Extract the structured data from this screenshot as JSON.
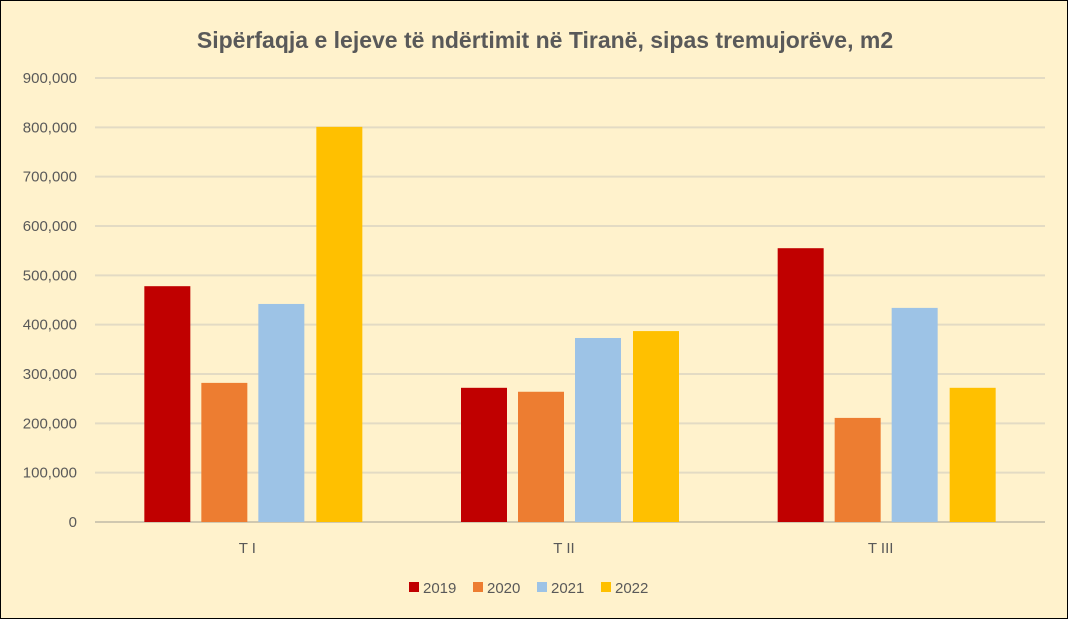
{
  "chart_data": {
    "type": "bar",
    "title": "Sipërfaqja e lejeve të ndërtimit në Tiranë, sipas tremujorëve, m2",
    "xlabel": "",
    "ylabel": "",
    "categories": [
      "T I",
      "T II",
      "T III"
    ],
    "series": [
      {
        "name": "2019",
        "color": "#C00000",
        "values": [
          478000,
          272000,
          555000
        ]
      },
      {
        "name": "2020",
        "color": "#ED7D31",
        "values": [
          282000,
          264000,
          211000
        ]
      },
      {
        "name": "2021",
        "color": "#9DC3E6",
        "values": [
          442000,
          373000,
          434000
        ]
      },
      {
        "name": "2022",
        "color": "#FFC000",
        "values": [
          801000,
          387000,
          272000
        ]
      }
    ],
    "ylim": [
      0,
      900000
    ],
    "yticks": [
      "0",
      "100,000",
      "200,000",
      "300,000",
      "400,000",
      "500,000",
      "600,000",
      "700,000",
      "800,000",
      "900,000"
    ],
    "grid": true,
    "legend": "bottom"
  }
}
